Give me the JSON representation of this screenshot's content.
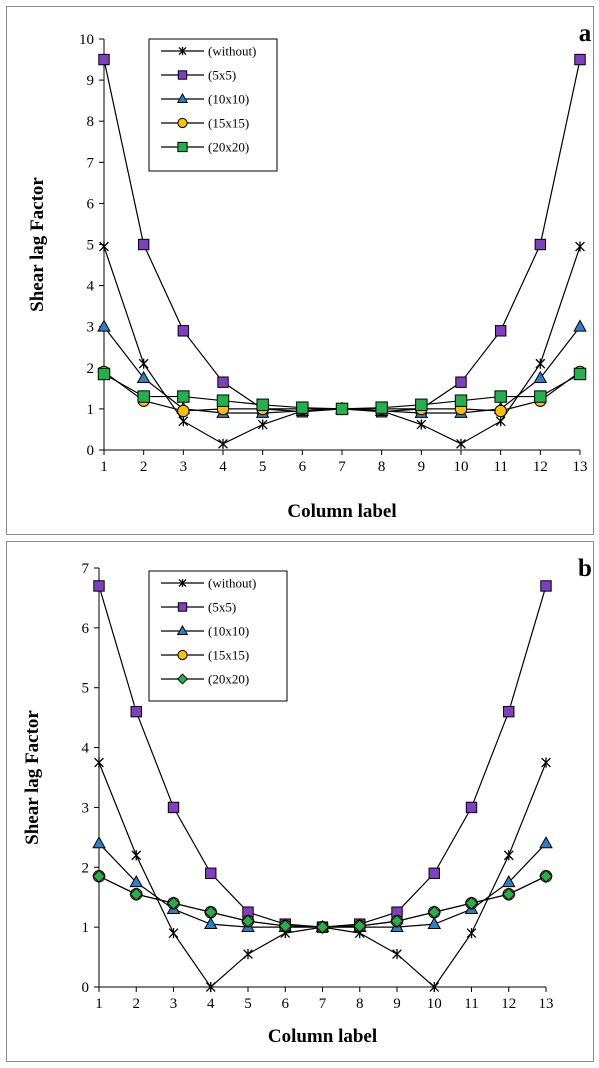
{
  "chart_data": [
    {
      "type": "line",
      "panel_label": "a",
      "xlabel": "Column label",
      "ylabel": "Shear lag Factor",
      "x": [
        1,
        2,
        3,
        4,
        5,
        6,
        7,
        8,
        9,
        10,
        11,
        12,
        13
      ],
      "xlim": [
        1,
        13
      ],
      "ylim": [
        0,
        10
      ],
      "yticks": [
        0,
        1,
        2,
        3,
        4,
        5,
        6,
        7,
        8,
        9,
        10
      ],
      "grid": false,
      "legend_position": "top-left",
      "series": [
        {
          "name": "(without)",
          "marker": "asterisk",
          "color": "#000000",
          "values": [
            4.95,
            2.1,
            0.7,
            0.15,
            0.62,
            0.95,
            1.0,
            0.95,
            0.62,
            0.15,
            0.7,
            2.1,
            4.95
          ]
        },
        {
          "name": "(5x5)",
          "marker": "square",
          "color": "#7f3fbf",
          "values": [
            9.5,
            5.0,
            2.9,
            1.65,
            1.0,
            0.93,
            1.0,
            0.93,
            1.0,
            1.65,
            2.9,
            5.0,
            9.5
          ]
        },
        {
          "name": "(10x10)",
          "marker": "triangle",
          "color": "#2e7fc7",
          "values": [
            3.0,
            1.75,
            1.0,
            0.9,
            0.9,
            0.95,
            1.0,
            0.95,
            0.9,
            0.9,
            1.0,
            1.75,
            3.0
          ]
        },
        {
          "name": "(15x15)",
          "marker": "circle",
          "color": "#ffc000",
          "values": [
            1.9,
            1.2,
            0.95,
            1.0,
            1.0,
            1.0,
            1.0,
            1.0,
            1.0,
            1.0,
            0.95,
            1.2,
            1.9
          ]
        },
        {
          "name": "(20x20)",
          "marker": "square-green",
          "color": "#22b14c",
          "values": [
            1.85,
            1.3,
            1.3,
            1.2,
            1.1,
            1.03,
            1.0,
            1.03,
            1.1,
            1.2,
            1.3,
            1.3,
            1.85
          ]
        }
      ]
    },
    {
      "type": "line",
      "panel_label": "b",
      "xlabel": "Column label",
      "ylabel": "Shear lag Factor",
      "x": [
        1,
        2,
        3,
        4,
        5,
        6,
        7,
        8,
        9,
        10,
        11,
        12,
        13
      ],
      "xlim": [
        1,
        13
      ],
      "ylim": [
        0,
        7
      ],
      "yticks": [
        0,
        1,
        2,
        3,
        4,
        5,
        6,
        7
      ],
      "grid": false,
      "legend_position": "top-left",
      "series": [
        {
          "name": "(without)",
          "marker": "asterisk",
          "color": "#000000",
          "values": [
            3.75,
            2.2,
            0.9,
            0.0,
            0.55,
            0.9,
            1.0,
            0.9,
            0.55,
            0.0,
            0.9,
            2.2,
            3.75
          ]
        },
        {
          "name": "(5x5)",
          "marker": "square",
          "color": "#7f3fbf",
          "values": [
            6.7,
            4.6,
            3.0,
            1.9,
            1.25,
            1.05,
            1.0,
            1.05,
            1.25,
            1.9,
            3.0,
            4.6,
            6.7
          ]
        },
        {
          "name": "(10x10)",
          "marker": "triangle",
          "color": "#2e7fc7",
          "values": [
            2.4,
            1.75,
            1.3,
            1.05,
            1.0,
            1.0,
            1.0,
            1.0,
            1.0,
            1.05,
            1.3,
            1.75,
            2.4
          ]
        },
        {
          "name": "(15x15)",
          "marker": "circle",
          "color": "#ffc000",
          "values": [
            1.85,
            1.55,
            1.4,
            1.25,
            1.1,
            1.02,
            1.0,
            1.02,
            1.1,
            1.25,
            1.4,
            1.55,
            1.85
          ]
        },
        {
          "name": "(20x20)",
          "marker": "diamond",
          "color": "#22b14c",
          "values": [
            1.85,
            1.55,
            1.4,
            1.25,
            1.1,
            1.02,
            1.0,
            1.02,
            1.1,
            1.25,
            1.4,
            1.55,
            1.85
          ]
        }
      ]
    }
  ]
}
